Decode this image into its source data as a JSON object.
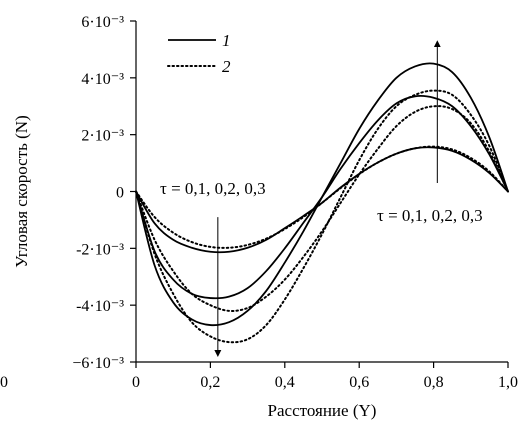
{
  "chart_data": {
    "type": "line",
    "xlabel": "Расстояние (Y)",
    "ylabel": "Угловая скорость (N)",
    "xlim": [
      0,
      1
    ],
    "ylim": [
      -0.006,
      0.006
    ],
    "x_ticks": [
      {
        "value": 0,
        "label": "0"
      },
      {
        "value": 0.2,
        "label": "0,2"
      },
      {
        "value": 0.4,
        "label": "0,4"
      },
      {
        "value": 0.6,
        "label": "0,6"
      },
      {
        "value": 0.8,
        "label": "0,8"
      },
      {
        "value": 1.0,
        "label": "1,0"
      }
    ],
    "y_ticks": [
      {
        "value": 0.006,
        "label": "6·10⁻³"
      },
      {
        "value": 0.004,
        "label": "4·10⁻³"
      },
      {
        "value": 0.002,
        "label": "2·10⁻³"
      },
      {
        "value": 0,
        "label": "0"
      },
      {
        "value": -0.002,
        "label": "-2·10⁻³"
      },
      {
        "value": -0.004,
        "label": "-4·10⁻³"
      },
      {
        "value": -0.006,
        "label": "−6·10⁻³"
      }
    ],
    "stray_label": "0",
    "legend": {
      "placement": "top-left",
      "entries": [
        {
          "label": "1",
          "style": "solid"
        },
        {
          "label": "2",
          "style": "dotted"
        }
      ]
    },
    "annotations": [
      {
        "text": "τ = 0,1, 0,2, 0,3",
        "x": 0.22,
        "y": 0.0004,
        "arrow": "down",
        "arrow_from": -0.0009,
        "arrow_to": -0.0057
      },
      {
        "text": "τ = 0,1, 0,2, 0,3",
        "x": 0.81,
        "y": -0.0016,
        "arrow": "up",
        "arrow_from": 0.0003,
        "arrow_to": 0.0052
      }
    ],
    "series": [
      {
        "style": "solid",
        "x": [
          0,
          0.05,
          0.1,
          0.15,
          0.2,
          0.25,
          0.3,
          0.35,
          0.4,
          0.45,
          0.5,
          0.55,
          0.6,
          0.65,
          0.7,
          0.75,
          0.8,
          0.85,
          0.9,
          0.95,
          1.0
        ],
        "y": [
          0,
          -0.00112,
          -0.0017,
          -0.00198,
          -0.00212,
          -0.00212,
          -0.00198,
          -0.0017,
          -0.00129,
          -0.00086,
          -0.0004,
          0.00014,
          0.00062,
          0.00102,
          0.00133,
          0.00152,
          0.00155,
          0.00143,
          0.00112,
          0.00065,
          0
        ]
      },
      {
        "style": "solid",
        "x": [
          0,
          0.05,
          0.1,
          0.15,
          0.2,
          0.25,
          0.3,
          0.35,
          0.4,
          0.45,
          0.5,
          0.55,
          0.6,
          0.65,
          0.7,
          0.75,
          0.8,
          0.85,
          0.9,
          0.95,
          1.0
        ],
        "y": [
          0,
          -0.0021,
          -0.0031,
          -0.0036,
          -0.00375,
          -0.0037,
          -0.0034,
          -0.0028,
          -0.002,
          -0.0011,
          -0.0002,
          0.0008,
          0.0017,
          0.0025,
          0.0031,
          0.00335,
          0.0033,
          0.003,
          0.0023,
          0.0013,
          0
        ]
      },
      {
        "style": "solid",
        "x": [
          0,
          0.05,
          0.1,
          0.15,
          0.2,
          0.25,
          0.3,
          0.35,
          0.4,
          0.45,
          0.5,
          0.55,
          0.6,
          0.65,
          0.7,
          0.75,
          0.8,
          0.85,
          0.9,
          0.95,
          1.0
        ],
        "y": [
          0,
          -0.0026,
          -0.0039,
          -0.0045,
          -0.0047,
          -0.0046,
          -0.0042,
          -0.0035,
          -0.0025,
          -0.0014,
          -0.0002,
          0.001,
          0.0022,
          0.0032,
          0.004,
          0.0044,
          0.0045,
          0.0042,
          0.0033,
          0.0019,
          0
        ]
      },
      {
        "style": "dotted",
        "x": [
          0,
          0.05,
          0.1,
          0.15,
          0.2,
          0.25,
          0.3,
          0.35,
          0.4,
          0.45,
          0.5,
          0.55,
          0.6,
          0.65,
          0.7,
          0.75,
          0.8,
          0.85,
          0.9,
          0.95,
          1.0
        ],
        "y": [
          0,
          -0.0009,
          -0.00145,
          -0.00178,
          -0.00195,
          -0.00198,
          -0.00188,
          -0.00166,
          -0.00132,
          -0.0009,
          -0.0004,
          0.00012,
          0.00061,
          0.00102,
          0.00133,
          0.00152,
          0.00158,
          0.00148,
          0.00118,
          0.0007,
          0
        ]
      },
      {
        "style": "dotted",
        "x": [
          0,
          0.05,
          0.1,
          0.15,
          0.2,
          0.25,
          0.3,
          0.35,
          0.4,
          0.45,
          0.5,
          0.55,
          0.6,
          0.65,
          0.7,
          0.75,
          0.8,
          0.85,
          0.9,
          0.95,
          1.0
        ],
        "y": [
          0,
          -0.0017,
          -0.0028,
          -0.0036,
          -0.004,
          -0.0042,
          -0.0041,
          -0.0037,
          -0.0031,
          -0.0023,
          -0.0014,
          -0.0004,
          0.0006,
          0.0015,
          0.0023,
          0.0028,
          0.003,
          0.0029,
          0.0024,
          0.0014,
          0
        ]
      },
      {
        "style": "dotted",
        "x": [
          0,
          0.05,
          0.1,
          0.15,
          0.2,
          0.25,
          0.3,
          0.35,
          0.4,
          0.45,
          0.5,
          0.55,
          0.6,
          0.65,
          0.7,
          0.75,
          0.8,
          0.85,
          0.9,
          0.95,
          1.0
        ],
        "y": [
          0,
          -0.0022,
          -0.0036,
          -0.0046,
          -0.0051,
          -0.0053,
          -0.0052,
          -0.0047,
          -0.0038,
          -0.0027,
          -0.0015,
          -0.0002,
          0.0011,
          0.0022,
          0.003,
          0.0034,
          0.00355,
          0.0034,
          0.0027,
          0.0016,
          0
        ]
      }
    ]
  }
}
